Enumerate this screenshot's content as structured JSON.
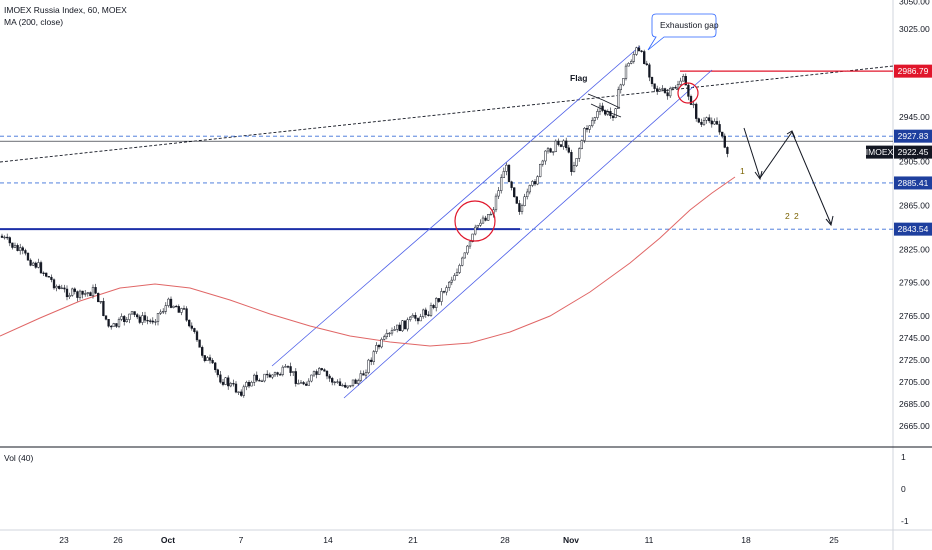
{
  "header": {
    "title": "IMOEX Russia Index, 60, MOEX",
    "indicator": "MA (200, close)"
  },
  "volume_pane": {
    "label": "Vol (40)",
    "ticks": [
      "1",
      "0",
      "-1"
    ]
  },
  "colors": {
    "price_candle": "#131722",
    "channel": "#4c5ee8",
    "ma": "#e06666",
    "level": "#3a6fd8",
    "resistance": "#e0162b",
    "arrows": "#131722",
    "flag": "#131722",
    "circle": "#e0162b"
  },
  "chart_data": {
    "type": "candlestick",
    "instrument": "IMOEX",
    "last_price": 2922.45,
    "ylim": [
      2655,
      3055
    ],
    "y_ticks": [
      3050,
      3025,
      2945,
      2905,
      2865,
      2825,
      2795,
      2765,
      2745,
      2725,
      2705,
      2685,
      2665
    ],
    "x_ticks": [
      "23",
      "26",
      "Oct",
      "7",
      "14",
      "21",
      "28",
      "Nov",
      "11",
      "18",
      "25"
    ],
    "price_labels": [
      {
        "text": "2986.79",
        "value": 2986.79,
        "style": "red"
      },
      {
        "text": "2927.83",
        "value": 2927.83,
        "style": "blue"
      },
      {
        "text": "2922.45",
        "value": 2922.45,
        "style": "dark",
        "name": "IMOEX"
      },
      {
        "text": "2885.41",
        "value": 2885.41,
        "style": "blue"
      },
      {
        "text": "2843.54",
        "value": 2843.54,
        "style": "blue"
      }
    ],
    "horizontal_levels": [
      2927.83,
      2885.41,
      2843.54
    ],
    "resistance_level": 2986.79,
    "annotations": [
      {
        "text": "Exhaustion gap",
        "type": "callout"
      },
      {
        "text": "Flag",
        "type": "label"
      },
      {
        "text": "1",
        "type": "target"
      },
      {
        "text": "2",
        "type": "target"
      },
      {
        "text": "2",
        "type": "target"
      }
    ]
  }
}
